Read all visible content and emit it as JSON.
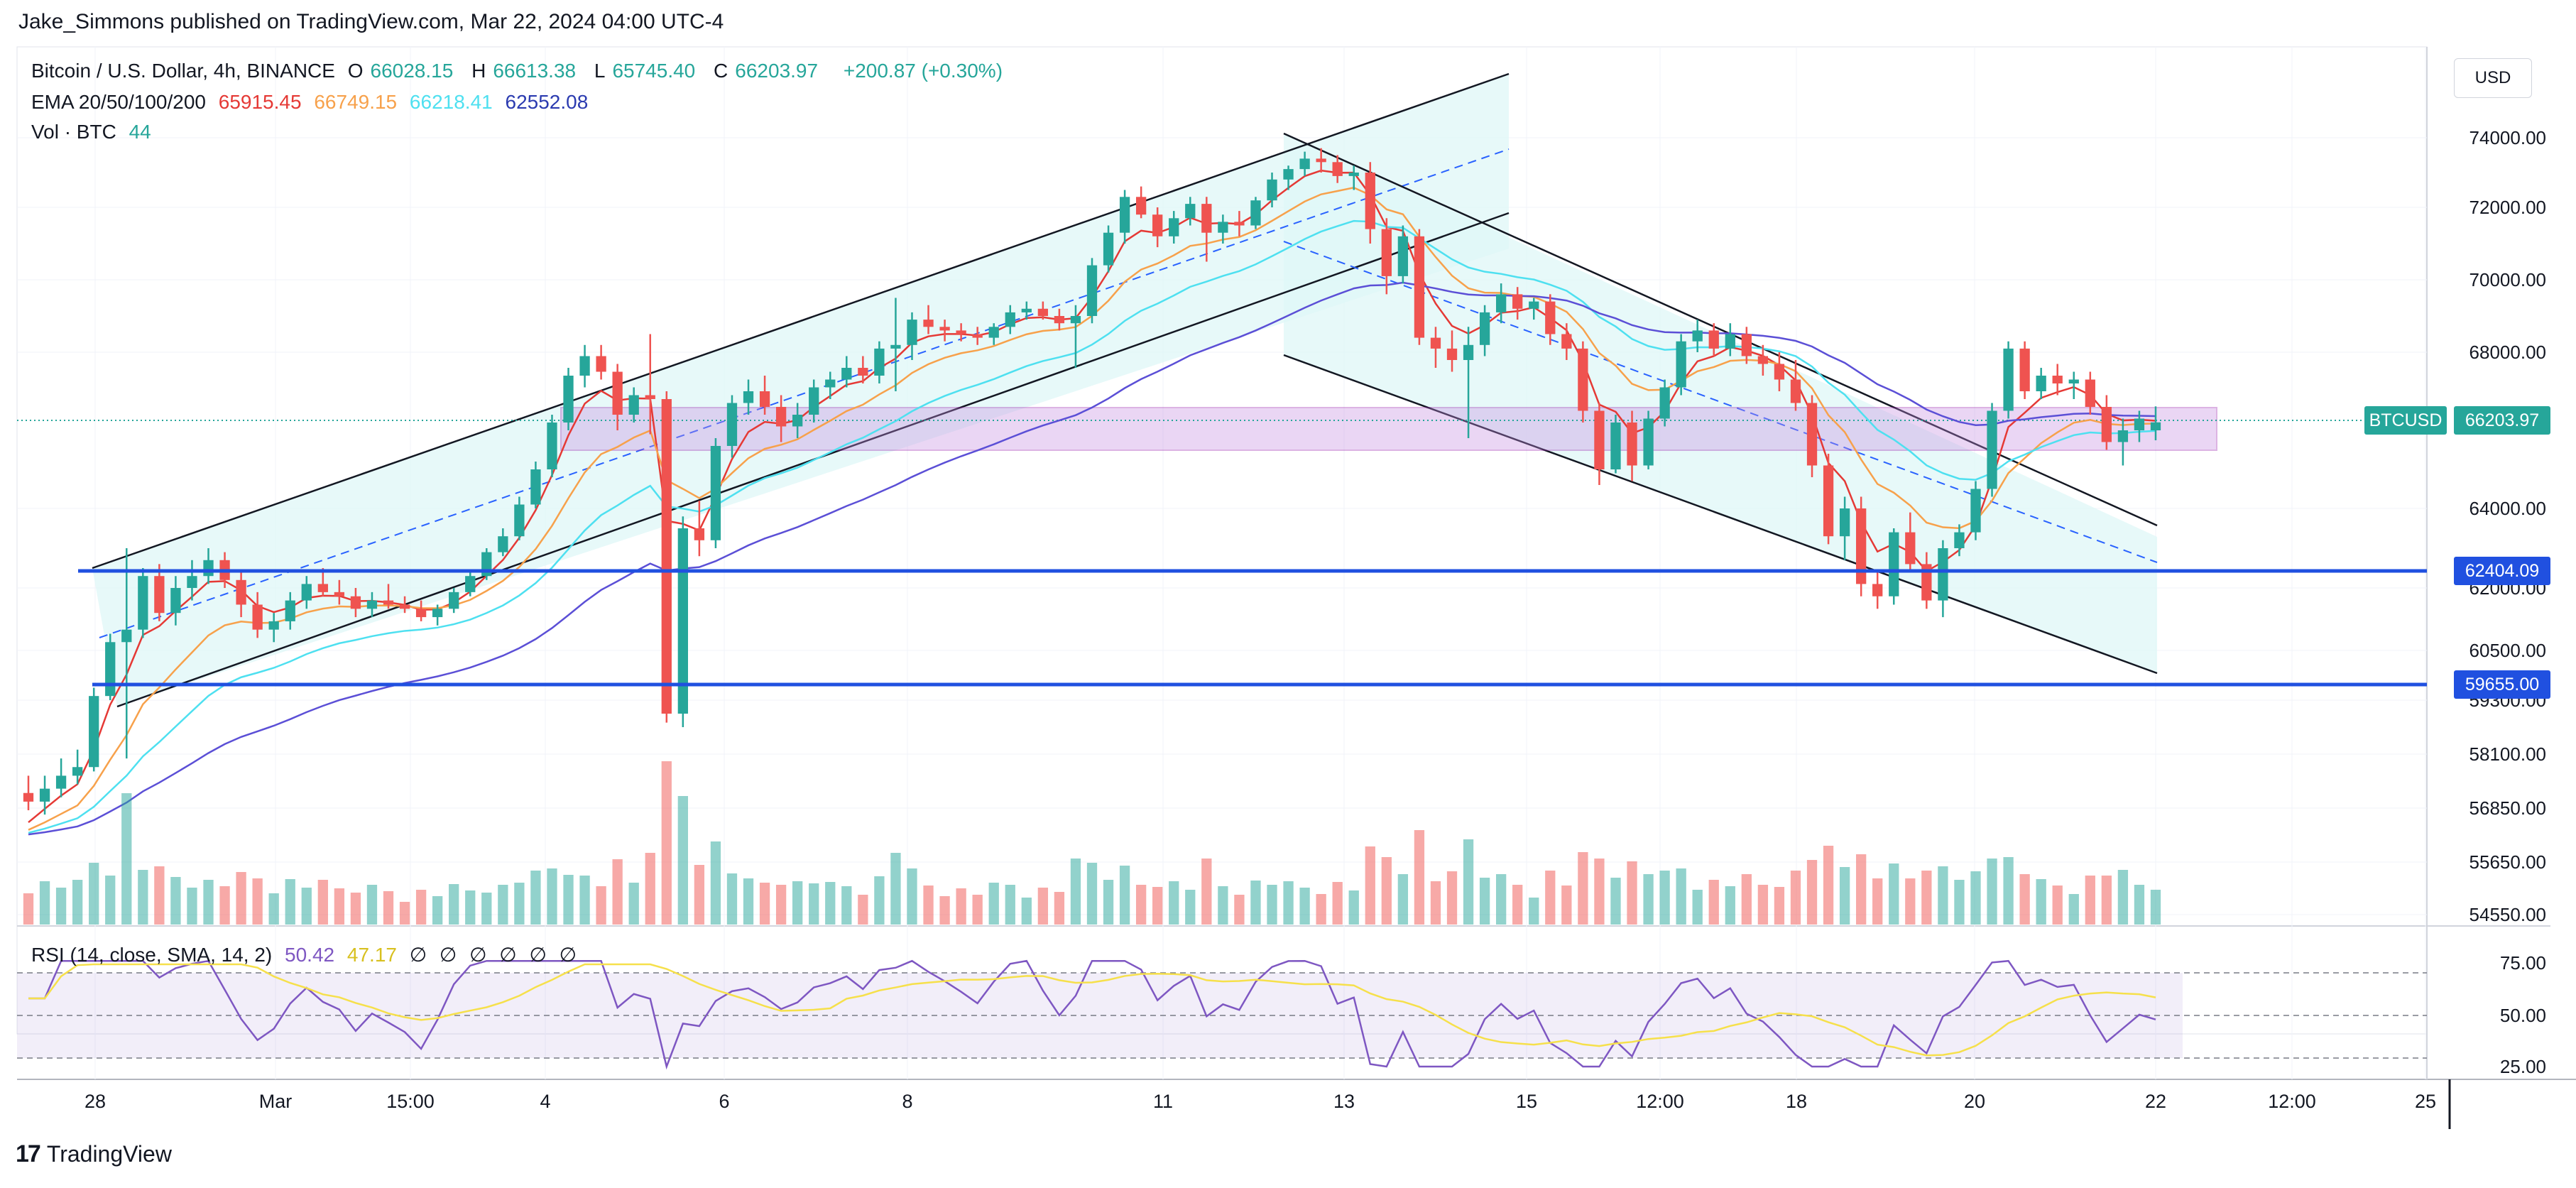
{
  "header": {
    "publisher_line": "Jake_Simmons published on TradingView.com, Mar 22, 2024 04:00 UTC-4"
  },
  "legend": {
    "symbol": "Bitcoin / U.S. Dollar, 4h, BINANCE",
    "o_label": "O",
    "o_value": "66028.15",
    "h_label": "H",
    "h_value": "66613.38",
    "l_label": "L",
    "l_value": "65745.40",
    "c_label": "C",
    "c_value": "66203.97",
    "change": "+200.87 (+0.30%)",
    "ema_label": "EMA 20/50/100/200",
    "ema20": "65915.45",
    "ema50": "66749.15",
    "ema100": "66218.41",
    "ema200": "62552.08",
    "vol_label": "Vol · BTC",
    "vol_value": "44",
    "rsi_label": "RSI (14, close, SMA, 14, 2)",
    "rsi_value": "50.42",
    "rsi_sma": "47.17",
    "rsi_extra": [
      "∅",
      "∅",
      "∅",
      "∅",
      "∅",
      "∅"
    ]
  },
  "currency": "USD",
  "price_tags": {
    "symbol_tag": "BTCUSD",
    "last_price": "66203.97",
    "level_upper": "62404.09",
    "level_lower": "59655.00"
  },
  "footer": {
    "logo_icon": "17",
    "logo_text": "TradingView"
  },
  "colors": {
    "up": "#26a69a",
    "down": "#ef5350",
    "ema20": "#e53935",
    "ema50": "#f7a14b",
    "ema100": "#4ee0f0",
    "ema200": "#5b4fd6",
    "level": "#2050e0",
    "zone": "#c58be0",
    "channel_fill": "#dff7f7",
    "rsi": "#7e57c2",
    "rsi_sma": "#f6e04b"
  },
  "chart_data": {
    "type": "candlestick",
    "title": "Bitcoin / U.S. Dollar, 4h, BINANCE",
    "y_axis_labels": [
      "74000.00",
      "72000.00",
      "70000.00",
      "68000.00",
      "64000.00",
      "62000.00",
      "60500.00",
      "59300.00",
      "58100.00",
      "56850.00",
      "55650.00",
      "54550.00"
    ],
    "x_axis_labels": [
      "28",
      "Mar",
      "15:00",
      "4",
      "6",
      "8",
      "11",
      "13",
      "15",
      "12:00",
      "18",
      "20",
      "22",
      "12:00",
      "25"
    ],
    "rsi_axis_labels": [
      "75.00",
      "50.00",
      "25.00"
    ],
    "horizontal_levels": [
      62404.09,
      59655.0
    ],
    "resistance_zone": [
      65500,
      66600
    ],
    "last_price": 66203.97,
    "ohlc_keypoints": [
      [
        57200,
        57600,
        56800,
        57000
      ],
      [
        57000,
        57600,
        56700,
        57300
      ],
      [
        57300,
        58000,
        57100,
        57600
      ],
      [
        57600,
        58200,
        57400,
        57800
      ],
      [
        57800,
        59600,
        57700,
        59400
      ],
      [
        59400,
        60900,
        59300,
        60700
      ],
      [
        60700,
        63000,
        58000,
        61000
      ],
      [
        61000,
        62500,
        60800,
        62300
      ],
      [
        62300,
        62600,
        61200,
        61400
      ],
      [
        61400,
        62300,
        61100,
        62000
      ],
      [
        62000,
        62700,
        61700,
        62300
      ],
      [
        62300,
        63000,
        62100,
        62700
      ],
      [
        62700,
        62900,
        62000,
        62200
      ],
      [
        62200,
        62400,
        61300,
        61600
      ],
      [
        61600,
        61900,
        60800,
        61000
      ],
      [
        61000,
        61400,
        60700,
        61200
      ],
      [
        61200,
        61900,
        61000,
        61700
      ],
      [
        61700,
        62300,
        61500,
        62100
      ],
      [
        62100,
        62500,
        61800,
        61900
      ],
      [
        61900,
        62200,
        61600,
        61800
      ],
      [
        61800,
        62000,
        61300,
        61500
      ],
      [
        61500,
        61900,
        61300,
        61700
      ],
      [
        61700,
        62100,
        61500,
        61600
      ],
      [
        61600,
        61800,
        61400,
        61500
      ],
      [
        61500,
        61700,
        61200,
        61300
      ],
      [
        61300,
        61600,
        61100,
        61500
      ],
      [
        61500,
        62000,
        61400,
        61900
      ],
      [
        61900,
        62400,
        61800,
        62300
      ],
      [
        62300,
        63000,
        62200,
        62900
      ],
      [
        62900,
        63500,
        62800,
        63300
      ],
      [
        63300,
        64300,
        63200,
        64100
      ],
      [
        64100,
        65200,
        64000,
        65000
      ],
      [
        65000,
        66400,
        64800,
        66200
      ],
      [
        66200,
        67600,
        66000,
        67400
      ],
      [
        67400,
        68200,
        67100,
        67900
      ],
      [
        67900,
        68200,
        67300,
        67500
      ],
      [
        67500,
        67700,
        66000,
        66400
      ],
      [
        66400,
        67100,
        66200,
        66900
      ],
      [
        66900,
        68500,
        65900,
        66800
      ],
      [
        66800,
        67000,
        58800,
        59000
      ],
      [
        59000,
        63800,
        58700,
        63500
      ],
      [
        63500,
        64200,
        62800,
        63200
      ],
      [
        63200,
        65800,
        63000,
        65600
      ],
      [
        65600,
        66900,
        65300,
        66700
      ],
      [
        66700,
        67300,
        66400,
        67000
      ],
      [
        67000,
        67400,
        66400,
        66600
      ],
      [
        66600,
        66900,
        65700,
        66100
      ],
      [
        66100,
        66700,
        65800,
        66400
      ],
      [
        66400,
        67300,
        66200,
        67100
      ],
      [
        67100,
        67500,
        66800,
        67300
      ],
      [
        67300,
        67900,
        67100,
        67600
      ],
      [
        67600,
        67900,
        67200,
        67400
      ],
      [
        67400,
        68300,
        67200,
        68100
      ],
      [
        68100,
        69500,
        67000,
        68200
      ],
      [
        68200,
        69100,
        67800,
        68900
      ],
      [
        68900,
        69300,
        68500,
        68700
      ],
      [
        68700,
        68900,
        68300,
        68600
      ],
      [
        68600,
        68800,
        68300,
        68500
      ],
      [
        68500,
        68700,
        68200,
        68400
      ],
      [
        68400,
        68800,
        68200,
        68700
      ],
      [
        68700,
        69300,
        68500,
        69100
      ],
      [
        69100,
        69400,
        68900,
        69200
      ],
      [
        69200,
        69400,
        68900,
        69000
      ],
      [
        69000,
        69200,
        68600,
        68800
      ],
      [
        68800,
        69300,
        67600,
        69000
      ],
      [
        69000,
        70600,
        68800,
        70400
      ],
      [
        70400,
        71500,
        70200,
        71300
      ],
      [
        71300,
        72500,
        71000,
        72300
      ],
      [
        72300,
        72600,
        71700,
        71800
      ],
      [
        71800,
        72000,
        70900,
        71200
      ],
      [
        71200,
        71900,
        71000,
        71700
      ],
      [
        71700,
        72300,
        71500,
        72100
      ],
      [
        72100,
        72300,
        70500,
        71300
      ],
      [
        71300,
        71800,
        71000,
        71600
      ],
      [
        71600,
        71900,
        71200,
        71500
      ],
      [
        71500,
        72300,
        71400,
        72200
      ],
      [
        72200,
        73000,
        72000,
        72800
      ],
      [
        72800,
        73200,
        72500,
        73100
      ],
      [
        73100,
        73600,
        72900,
        73400
      ],
      [
        73400,
        73700,
        73000,
        73300
      ],
      [
        73300,
        73500,
        72700,
        72900
      ],
      [
        72900,
        73200,
        72500,
        73000
      ],
      [
        73000,
        73300,
        71000,
        71400
      ],
      [
        71400,
        71700,
        69600,
        70100
      ],
      [
        70100,
        71500,
        69900,
        71200
      ],
      [
        71200,
        71400,
        68200,
        68400
      ],
      [
        68400,
        68700,
        67600,
        68100
      ],
      [
        68100,
        68600,
        67500,
        67800
      ],
      [
        67800,
        68700,
        65800,
        68200
      ],
      [
        68200,
        69300,
        67900,
        69100
      ],
      [
        69100,
        69900,
        68800,
        69600
      ],
      [
        69600,
        69800,
        68900,
        69200
      ],
      [
        69200,
        69500,
        68900,
        69400
      ],
      [
        69400,
        69600,
        68200,
        68500
      ],
      [
        68500,
        68800,
        67800,
        68100
      ],
      [
        68100,
        68300,
        66200,
        66500
      ],
      [
        66500,
        66700,
        64600,
        65000
      ],
      [
        65000,
        66400,
        64900,
        66200
      ],
      [
        66200,
        66500,
        64700,
        65100
      ],
      [
        65100,
        66500,
        65000,
        66300
      ],
      [
        66300,
        67300,
        66100,
        67100
      ],
      [
        67100,
        68500,
        66900,
        68300
      ],
      [
        68300,
        68900,
        68000,
        68600
      ],
      [
        68600,
        68800,
        67900,
        68100
      ],
      [
        68100,
        68800,
        67900,
        68500
      ],
      [
        68500,
        68700,
        67700,
        67900
      ],
      [
        67900,
        68200,
        67400,
        67700
      ],
      [
        67700,
        68000,
        67000,
        67300
      ],
      [
        67300,
        67800,
        66500,
        66700
      ],
      [
        66700,
        66900,
        64800,
        65100
      ],
      [
        65100,
        65400,
        63100,
        63300
      ],
      [
        63300,
        64300,
        62700,
        64000
      ],
      [
        64000,
        64300,
        61800,
        62100
      ],
      [
        62100,
        62400,
        61500,
        61800
      ],
      [
        61800,
        63500,
        61600,
        63400
      ],
      [
        63400,
        63900,
        62400,
        62600
      ],
      [
        62600,
        62900,
        61500,
        61700
      ],
      [
        61700,
        63200,
        61300,
        63000
      ],
      [
        63000,
        63600,
        62800,
        63400
      ],
      [
        63400,
        64700,
        63200,
        64500
      ],
      [
        64500,
        66700,
        64300,
        66500
      ],
      [
        66500,
        68300,
        66300,
        68100
      ],
      [
        68100,
        68300,
        66800,
        67000
      ],
      [
        67000,
        67600,
        66800,
        67400
      ],
      [
        67400,
        67700,
        66900,
        67200
      ],
      [
        67200,
        67500,
        66800,
        67300
      ],
      [
        67300,
        67500,
        66400,
        66600
      ],
      [
        66600,
        66900,
        65500,
        65700
      ],
      [
        65700,
        66300,
        65100,
        66000
      ],
      [
        66000,
        66500,
        65700,
        66300
      ],
      [
        66000,
        66613,
        65745,
        66204
      ]
    ],
    "volume_bars": 130,
    "rsi_range": [
      0,
      100
    ]
  }
}
